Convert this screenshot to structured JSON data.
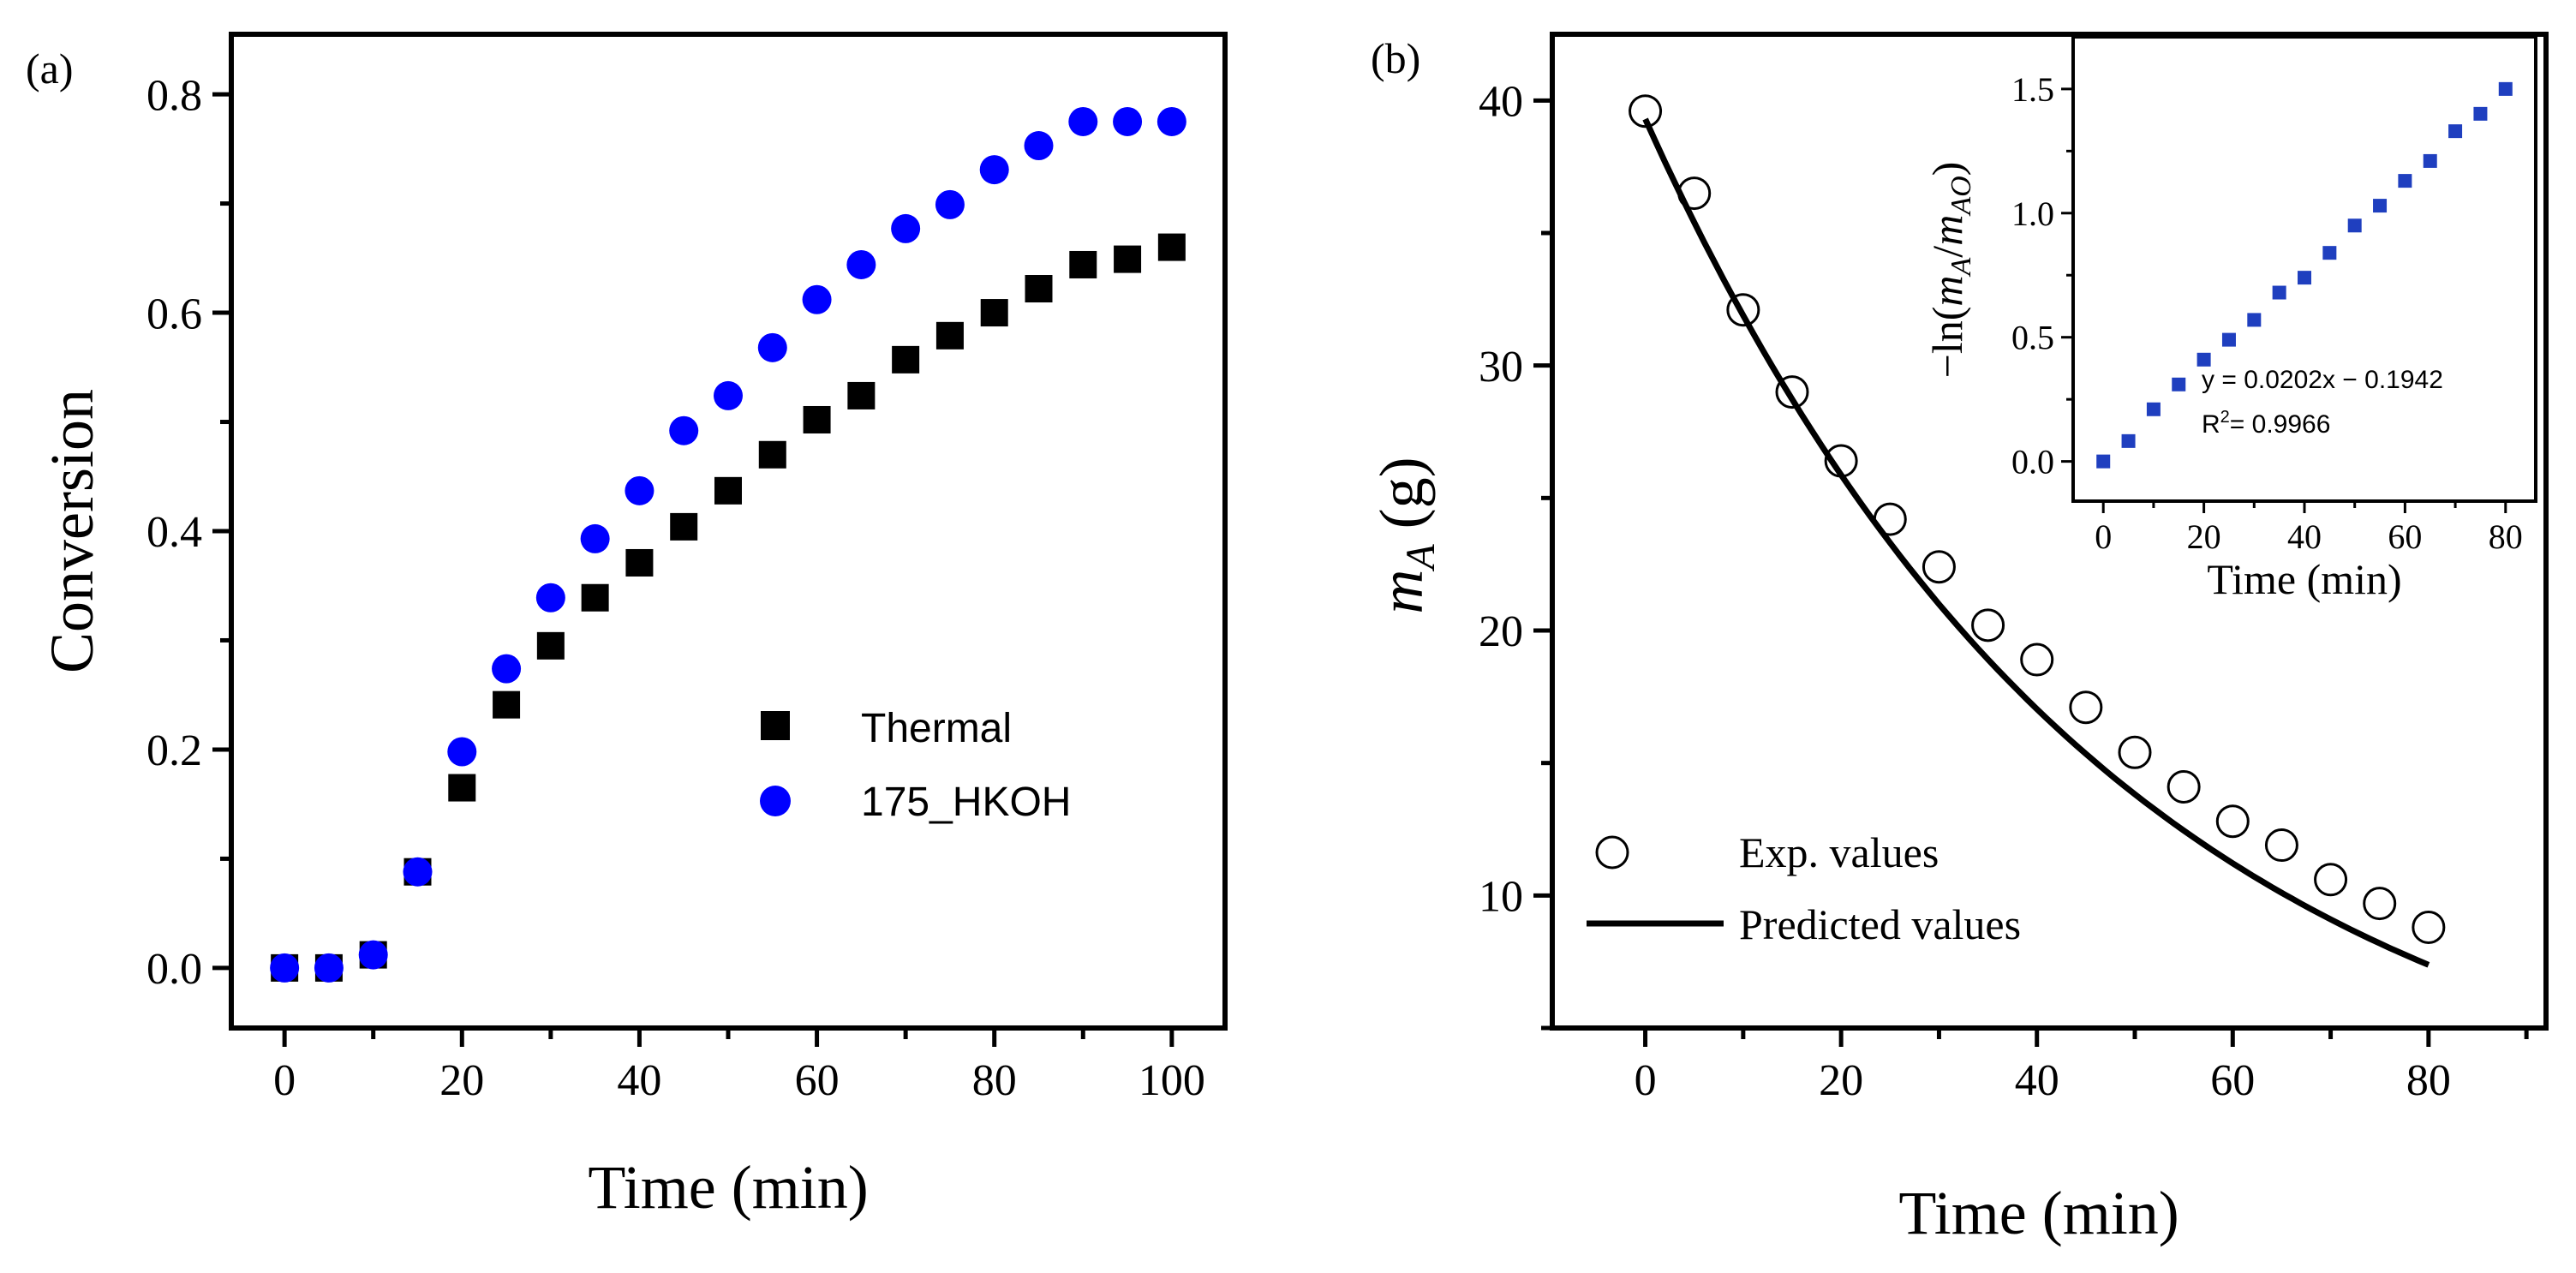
{
  "chart_data": [
    {
      "panel_label": "(a)",
      "type": "scatter",
      "xlabel": "Time (min)",
      "ylabel": "Conversion",
      "xlim": [
        -6,
        106
      ],
      "ylim": [
        -0.055,
        0.855
      ],
      "xticks": [
        "0",
        "20",
        "40",
        "60",
        "80",
        "100"
      ],
      "yticks": [
        "0.0",
        "0.2",
        "0.4",
        "0.6",
        "0.8"
      ],
      "x": [
        0,
        5,
        10,
        15,
        20,
        25,
        30,
        35,
        40,
        45,
        50,
        55,
        60,
        65,
        70,
        75,
        80,
        85,
        90,
        95,
        100
      ],
      "series": [
        {
          "name": "Thermal",
          "marker": "square",
          "color": "#000000",
          "values": [
            0.0,
            0.0,
            0.012,
            0.088,
            0.165,
            0.241,
            0.295,
            0.339,
            0.371,
            0.404,
            0.437,
            0.47,
            0.502,
            0.524,
            0.557,
            0.579,
            0.6,
            0.622,
            0.644,
            0.649,
            0.66
          ]
        },
        {
          "name": "175_HKOH",
          "marker": "circle",
          "color": "#0000ff",
          "values": [
            0.0,
            0.0,
            0.012,
            0.088,
            0.198,
            0.274,
            0.339,
            0.393,
            0.437,
            0.492,
            0.524,
            0.568,
            0.612,
            0.644,
            0.677,
            0.699,
            0.731,
            0.753,
            0.775,
            0.775,
            0.775
          ]
        }
      ],
      "legend_position": "center-right"
    },
    {
      "panel_label": "(b)",
      "type": "scatter+line",
      "xlabel": "Time (min)",
      "ylabel_main": "m",
      "ylabel_sub": "A",
      "ylabel_unit": " (g)",
      "xlim": [
        -9.5,
        92
      ],
      "ylim": [
        5,
        42.5
      ],
      "xticks": [
        "0",
        "20",
        "40",
        "60",
        "80"
      ],
      "yticks": [
        "10",
        "20",
        "30",
        "40"
      ],
      "series": [
        {
          "name": "Exp. values",
          "marker": "open-circle",
          "color": "#000000",
          "x": [
            0,
            5,
            10,
            15,
            20,
            25,
            30,
            35,
            40,
            45,
            50,
            55,
            60,
            65,
            70,
            75,
            80
          ],
          "values": [
            39.6,
            36.5,
            32.1,
            29.0,
            26.4,
            24.2,
            22.4,
            20.2,
            18.9,
            17.1,
            15.4,
            14.1,
            12.8,
            11.9,
            10.6,
            9.7,
            8.8
          ]
        },
        {
          "name": "Predicted values",
          "marker": "line",
          "color": "#000000",
          "model": "m = 39.3 * exp(-0.0209 * t)",
          "x": [
            0,
            10,
            20,
            30,
            40,
            50,
            60,
            70,
            80
          ],
          "values": [
            39.3,
            31.9,
            25.8,
            20.9,
            16.9,
            13.8,
            11.2,
            9.1,
            7.4
          ]
        }
      ],
      "legend_position": "bottom-left",
      "inset": {
        "type": "scatter",
        "xlabel": "Time (min)",
        "ylabel_prefix": "−ln(",
        "ylabel_m1": "m",
        "ylabel_s1": "A",
        "ylabel_slash": "/",
        "ylabel_m2": "m",
        "ylabel_s2": "AO",
        "ylabel_suffix": ")",
        "xlim": [
          -6,
          86
        ],
        "ylim": [
          -0.16,
          1.71
        ],
        "xticks": [
          "0",
          "20",
          "40",
          "60",
          "80"
        ],
        "yticks": [
          "0.0",
          "0.5",
          "1.0",
          "1.5"
        ],
        "color": "#1f3fbf",
        "x": [
          0,
          5,
          10,
          15,
          20,
          25,
          30,
          35,
          40,
          45,
          50,
          55,
          60,
          65,
          70,
          75,
          80
        ],
        "values": [
          0.0,
          0.082,
          0.21,
          0.31,
          0.41,
          0.49,
          0.57,
          0.68,
          0.74,
          0.84,
          0.95,
          1.03,
          1.13,
          1.21,
          1.33,
          1.4,
          1.5
        ],
        "equation": "y = 0.0202x − 0.1942",
        "r2_prefix": "R",
        "r2_sup": "2",
        "r2_value": "= 0.9966"
      }
    }
  ]
}
